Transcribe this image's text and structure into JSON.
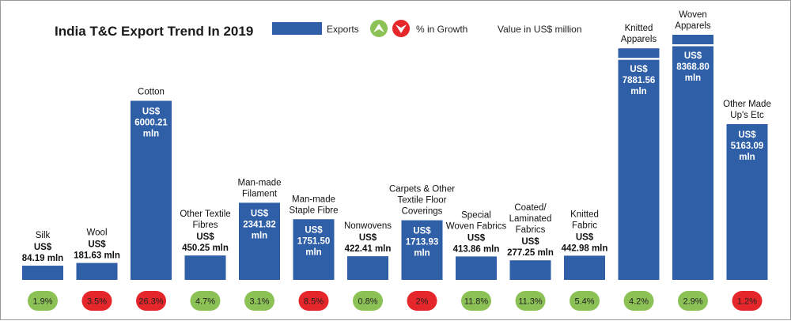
{
  "chart_data": {
    "type": "bar",
    "title": "India T&C Export Trend In 2019",
    "unit_note": "Value in US$ million",
    "legend": {
      "exports_label": "Exports",
      "growth_label": "% in Growth"
    },
    "categories": [
      [
        "Silk"
      ],
      [
        "Wool"
      ],
      [
        "Cotton"
      ],
      [
        "Other Textile",
        "Fibres"
      ],
      [
        "Man-made",
        "Filament"
      ],
      [
        "Man-made",
        "Staple Fibre"
      ],
      [
        "Nonwovens"
      ],
      [
        "Carpets & Other",
        "Textile Floor",
        "Coverings"
      ],
      [
        "Special",
        "Woven Fabrics"
      ],
      [
        "Coated/",
        "Laminated",
        "Fabrics"
      ],
      [
        "Knitted",
        "Fabric"
      ],
      [
        "Knitted",
        "Apparels"
      ],
      [
        "Woven",
        "Apparels"
      ],
      [
        "Other Made",
        "Up's Etc"
      ]
    ],
    "values": [
      84.19,
      181.63,
      6000.21,
      450.25,
      2341.82,
      1751.5,
      422.41,
      1713.93,
      413.86,
      277.25,
      442.98,
      7881.56,
      8368.8,
      5163.09
    ],
    "value_labels": [
      [
        "US$",
        "84.19 mln"
      ],
      [
        "US$",
        "181.63 mln"
      ],
      [
        "US$",
        "6000.21",
        "mln"
      ],
      [
        "US$",
        "450.25 mln"
      ],
      [
        "US$",
        "2341.82",
        "mln"
      ],
      [
        "US$",
        "1751.50",
        "mln"
      ],
      [
        "US$",
        "422.41 mln"
      ],
      [
        "US$",
        "1713.93",
        "mln"
      ],
      [
        "US$",
        "413.86 mln"
      ],
      [
        "US$",
        "277.25 mln"
      ],
      [
        "US$",
        "442.98 mln"
      ],
      [
        "US$",
        "7881.56",
        "mln"
      ],
      [
        "US$",
        "8368.80",
        "mln"
      ],
      [
        "US$",
        "5163.09",
        "mln"
      ]
    ],
    "growth": [
      "1.9%",
      "3.5%",
      "26.3%",
      "4.7%",
      "3.1%",
      "8.5%",
      "0.8%",
      "2%",
      "11.8%",
      "11.3%",
      "5.4%",
      "4.2%",
      "2.9%",
      "1.2%"
    ],
    "growth_direction": [
      "up",
      "down",
      "down",
      "up",
      "up",
      "down",
      "up",
      "down",
      "up",
      "up",
      "up",
      "up",
      "up",
      "down"
    ],
    "colors": {
      "bar": "#2f5fa6",
      "up": "#8cc156",
      "down": "#e5262a"
    }
  }
}
